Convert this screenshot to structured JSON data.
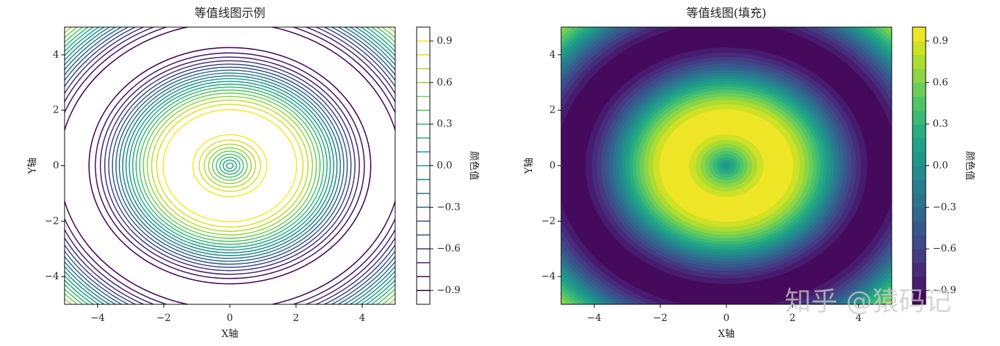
{
  "chart_data": [
    {
      "type": "contour",
      "title": "等值线图示例",
      "xlabel": "X轴",
      "ylabel": "Y轴",
      "colorbar_label": "颜色值",
      "cmap": "viridis",
      "xlim": [
        -5,
        5
      ],
      "ylim": [
        -5,
        5
      ],
      "clim": [
        -1,
        1
      ],
      "xticks": [
        {
          "value": -4,
          "label": "−4"
        },
        {
          "value": -2,
          "label": "−2"
        },
        0,
        2,
        4
      ],
      "yticks": [
        {
          "value": -4,
          "label": "−4"
        },
        {
          "value": -2,
          "label": "−2"
        },
        0,
        2,
        4
      ],
      "cticks": [
        {
          "value": -0.9,
          "label": "−0.9"
        },
        {
          "value": -0.6,
          "label": "−0.6"
        },
        {
          "value": -0.3,
          "label": "−0.3"
        },
        {
          "value": 0,
          "label": "0.0"
        },
        0.3,
        0.6,
        0.9
      ],
      "levels": [
        {
          "level": -0.9,
          "radii": [
            4.261,
            5.163
          ]
        },
        {
          "level": -0.8,
          "radii": [
            4.069,
            5.356
          ]
        },
        {
          "level": -0.7,
          "radii": [
            3.917,
            5.508
          ]
        },
        {
          "level": -0.6,
          "radii": [
            3.785,
            5.64
          ]
        },
        {
          "level": -0.5,
          "radii": [
            3.665,
            5.76
          ]
        },
        {
          "level": -0.4,
          "radii": [
            3.553,
            5.872
          ]
        },
        {
          "level": -0.3,
          "radii": [
            3.446,
            5.978
          ]
        },
        {
          "level": -0.2,
          "radii": [
            3.343,
            6.082
          ]
        },
        {
          "level": -0.1,
          "radii": [
            3.242,
            6.183
          ]
        },
        {
          "level": 0,
          "radii": [
            0,
            3.142,
            6.283
          ]
        },
        {
          "level": 0.1,
          "radii": [
            0.1,
            3.041,
            6.383
          ]
        },
        {
          "level": 0.2,
          "radii": [
            0.201,
            2.94,
            6.485
          ]
        },
        {
          "level": 0.3,
          "radii": [
            0.305,
            2.837,
            6.588
          ]
        },
        {
          "level": 0.4,
          "radii": [
            0.412,
            2.73,
            6.695
          ]
        },
        {
          "level": 0.5,
          "radii": [
            0.524,
            2.618,
            6.807
          ]
        },
        {
          "level": 0.6,
          "radii": [
            0.644,
            2.498,
            6.927
          ]
        },
        {
          "level": 0.7,
          "radii": [
            0.775,
            2.366,
            7.059
          ]
        },
        {
          "level": 0.8,
          "radii": [
            0.927,
            2.214
          ]
        },
        {
          "level": 0.9,
          "radii": [
            1.12,
            2.022
          ]
        }
      ]
    },
    {
      "type": "contourf",
      "title": "等值线图(填充)",
      "xlabel": "X轴",
      "ylabel": "Y轴",
      "colorbar_label": "颜色值",
      "cmap": "viridis",
      "xlim": [
        -5,
        5
      ],
      "ylim": [
        -5,
        5
      ],
      "clim": [
        -1,
        1
      ],
      "xticks": [
        {
          "value": -4,
          "label": "−4"
        },
        {
          "value": -2,
          "label": "−2"
        },
        0,
        2,
        4
      ],
      "yticks": [
        {
          "value": -4,
          "label": "−4"
        },
        {
          "value": -2,
          "label": "−2"
        },
        0,
        2,
        4
      ],
      "cticks": [
        {
          "value": -0.9,
          "label": "−0.9"
        },
        {
          "value": -0.6,
          "label": "−0.6"
        },
        {
          "value": -0.3,
          "label": "−0.3"
        },
        {
          "value": 0,
          "label": "0.0"
        },
        0.3,
        0.6,
        0.9
      ],
      "levels": [
        {
          "level": -0.9,
          "radii": [
            4.261,
            5.163
          ]
        },
        {
          "level": -0.8,
          "radii": [
            4.069,
            5.356
          ]
        },
        {
          "level": -0.7,
          "radii": [
            3.917,
            5.508
          ]
        },
        {
          "level": -0.6,
          "radii": [
            3.785,
            5.64
          ]
        },
        {
          "level": -0.5,
          "radii": [
            3.665,
            5.76
          ]
        },
        {
          "level": -0.4,
          "radii": [
            3.553,
            5.872
          ]
        },
        {
          "level": -0.3,
          "radii": [
            3.446,
            5.978
          ]
        },
        {
          "level": -0.2,
          "radii": [
            3.343,
            6.082
          ]
        },
        {
          "level": -0.1,
          "radii": [
            3.242,
            6.183
          ]
        },
        {
          "level": 0,
          "radii": [
            0,
            3.142,
            6.283
          ]
        },
        {
          "level": 0.1,
          "radii": [
            0.1,
            3.041,
            6.383
          ]
        },
        {
          "level": 0.2,
          "radii": [
            0.201,
            2.94,
            6.485
          ]
        },
        {
          "level": 0.3,
          "radii": [
            0.305,
            2.837,
            6.588
          ]
        },
        {
          "level": 0.4,
          "radii": [
            0.412,
            2.73,
            6.695
          ]
        },
        {
          "level": 0.5,
          "radii": [
            0.524,
            2.618,
            6.807
          ]
        },
        {
          "level": 0.6,
          "radii": [
            0.644,
            2.498,
            6.927
          ]
        },
        {
          "level": 0.7,
          "radii": [
            0.775,
            2.366,
            7.059
          ]
        },
        {
          "level": 0.8,
          "radii": [
            0.927,
            2.214
          ]
        },
        {
          "level": 0.9,
          "radii": [
            1.12,
            2.022
          ]
        }
      ]
    }
  ],
  "watermark": "知乎 @猿码记"
}
